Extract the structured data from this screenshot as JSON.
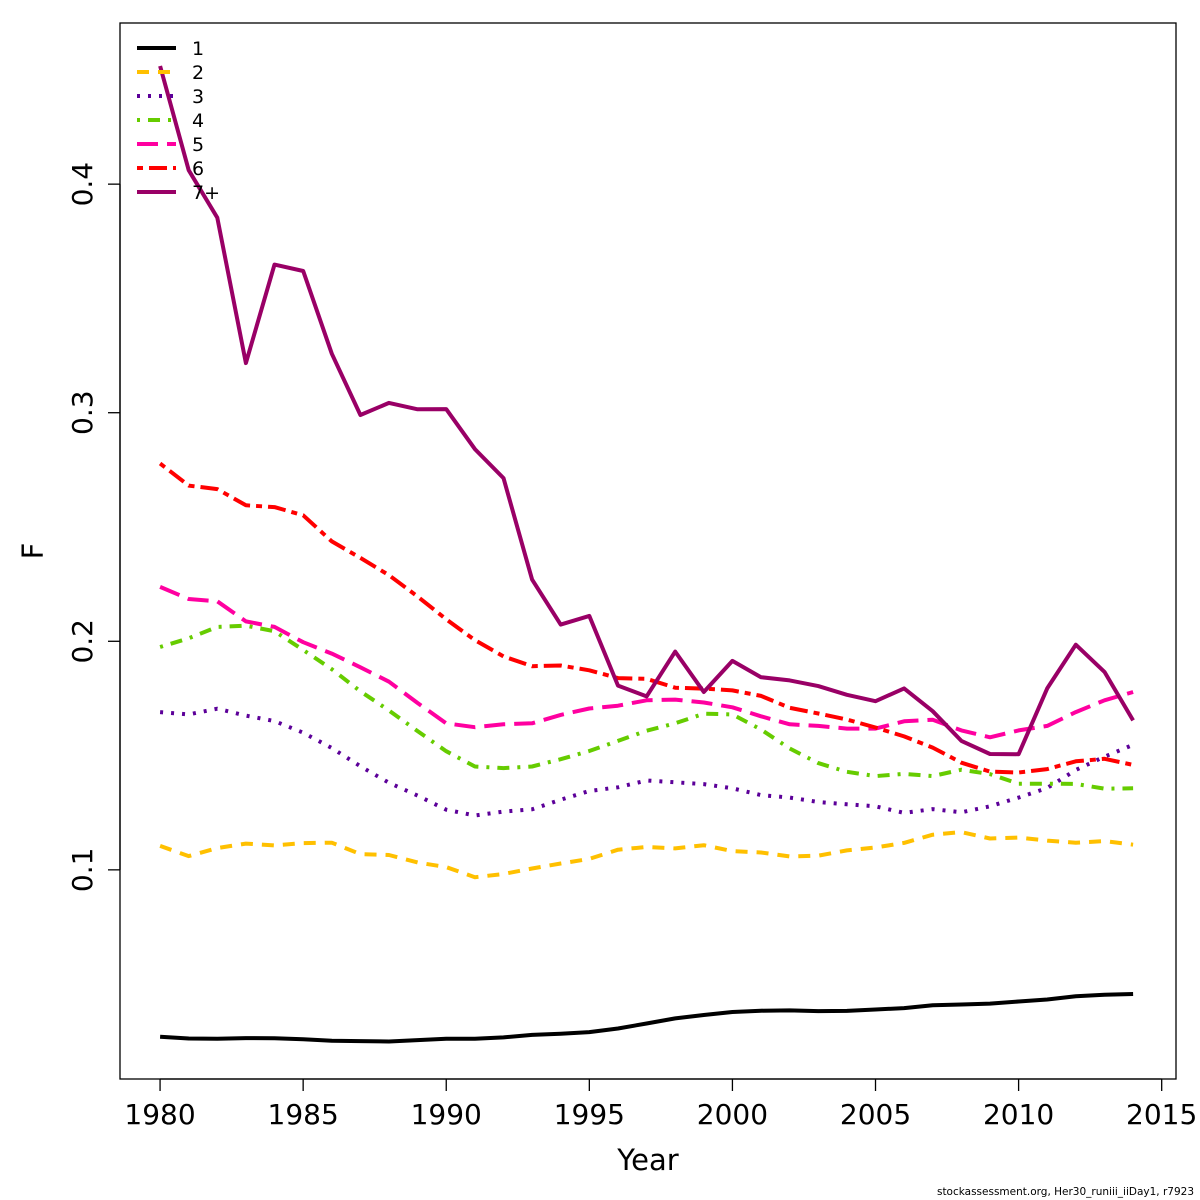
{
  "chart_data": {
    "type": "line",
    "title": "",
    "xlabel": "Year",
    "ylabel": "F",
    "xlim": [
      1978.6,
      2015.5
    ],
    "ylim": [
      0.0085,
      0.4705
    ],
    "x_ticks": [
      "1980",
      "1985",
      "1990",
      "1995",
      "2000",
      "2005",
      "2010",
      "2015"
    ],
    "x_tick_values": [
      1980,
      1985,
      1990,
      1995,
      2000,
      2005,
      2010,
      2015
    ],
    "y_ticks": [
      "0.1",
      "0.2",
      "0.3",
      "0.4"
    ],
    "y_tick_values": [
      0.1,
      0.2,
      0.3,
      0.4
    ],
    "grid": false,
    "legend_position": "top-left",
    "x": [
      1980,
      1981,
      1982,
      1983,
      1984,
      1985,
      1986,
      1987,
      1988,
      1989,
      1990,
      1991,
      1992,
      1993,
      1994,
      1995,
      1996,
      1997,
      1998,
      1999,
      2000,
      2001,
      2002,
      2003,
      2004,
      2005,
      2006,
      2007,
      2008,
      2009,
      2010,
      2011,
      2012,
      2013,
      2014
    ],
    "series": [
      {
        "name": "1",
        "color": "#000000",
        "dash": "solid",
        "values": [
          0.027,
          0.0262,
          0.0261,
          0.0264,
          0.0263,
          0.0259,
          0.0252,
          0.0251,
          0.0249,
          0.0255,
          0.0261,
          0.0261,
          0.0267,
          0.0278,
          0.0283,
          0.029,
          0.0306,
          0.0328,
          0.035,
          0.0365,
          0.0378,
          0.0384,
          0.0385,
          0.0382,
          0.0383,
          0.0389,
          0.0395,
          0.0408,
          0.0411,
          0.0415,
          0.0424,
          0.0433,
          0.0447,
          0.0454,
          0.0457
        ]
      },
      {
        "name": "2",
        "color": "#FFC000",
        "dash": "dashed",
        "values": [
          0.1105,
          0.106,
          0.1095,
          0.1115,
          0.1107,
          0.1117,
          0.1119,
          0.1069,
          0.1065,
          0.1032,
          0.1012,
          0.0968,
          0.0982,
          0.1006,
          0.1028,
          0.1048,
          0.1088,
          0.11,
          0.1094,
          0.1108,
          0.1082,
          0.1076,
          0.1059,
          0.1062,
          0.1085,
          0.1098,
          0.1118,
          0.1154,
          0.1165,
          0.1137,
          0.1141,
          0.1128,
          0.1119,
          0.1126,
          0.111
        ]
      },
      {
        "name": "3",
        "color": "#5C0099",
        "dash": "dotted",
        "values": [
          0.169,
          0.168,
          0.1705,
          0.1675,
          0.1651,
          0.16,
          0.1533,
          0.1453,
          0.1381,
          0.1325,
          0.1263,
          0.1238,
          0.1255,
          0.1265,
          0.1307,
          0.1345,
          0.1361,
          0.1391,
          0.1383,
          0.1375,
          0.1357,
          0.1327,
          0.1316,
          0.1297,
          0.1287,
          0.1278,
          0.1249,
          0.1266,
          0.1252,
          0.1278,
          0.1316,
          0.1358,
          0.1437,
          0.1495,
          0.1547
        ]
      },
      {
        "name": "4",
        "color": "#66CC00",
        "dash": "dotdash",
        "values": [
          0.1975,
          0.2013,
          0.2063,
          0.2068,
          0.2044,
          0.1962,
          0.1878,
          0.1781,
          0.1697,
          0.1607,
          0.1519,
          0.1452,
          0.1445,
          0.1452,
          0.1484,
          0.152,
          0.1564,
          0.1609,
          0.1641,
          0.1683,
          0.168,
          0.1614,
          0.1531,
          0.1467,
          0.1429,
          0.141,
          0.142,
          0.141,
          0.1438,
          0.1419,
          0.1377,
          0.1377,
          0.1376,
          0.1355,
          0.1357
        ]
      },
      {
        "name": "5",
        "color": "#FF00A0",
        "dash": "longdash",
        "values": [
          0.2238,
          0.2185,
          0.2175,
          0.2087,
          0.2063,
          0.1996,
          0.1946,
          0.1886,
          0.1823,
          0.173,
          0.1641,
          0.1624,
          0.1637,
          0.1641,
          0.1678,
          0.1706,
          0.1718,
          0.1742,
          0.1745,
          0.1732,
          0.1711,
          0.1672,
          0.1637,
          0.163,
          0.1618,
          0.1618,
          0.165,
          0.1657,
          0.161,
          0.158,
          0.161,
          0.163,
          0.169,
          0.1742,
          0.1778
        ]
      },
      {
        "name": "6",
        "color": "#FF0000",
        "dash": "twodash",
        "values": [
          0.2778,
          0.2681,
          0.2666,
          0.2595,
          0.2587,
          0.2551,
          0.2437,
          0.2365,
          0.2289,
          0.2196,
          0.2096,
          0.2005,
          0.1934,
          0.1891,
          0.1894,
          0.1873,
          0.1839,
          0.1836,
          0.1797,
          0.1793,
          0.1785,
          0.1761,
          0.1709,
          0.1684,
          0.1658,
          0.1623,
          0.1584,
          0.1535,
          0.1469,
          0.143,
          0.1426,
          0.1441,
          0.1475,
          0.1486,
          0.1459
        ]
      },
      {
        "name": "7+",
        "color": "#990066",
        "dash": "solid",
        "values": [
          0.4517,
          0.4061,
          0.3853,
          0.3217,
          0.3648,
          0.362,
          0.3258,
          0.299,
          0.3043,
          0.3015,
          0.3016,
          0.2841,
          0.2714,
          0.227,
          0.2073,
          0.2111,
          0.1806,
          0.1759,
          0.1955,
          0.1778,
          0.1914,
          0.1843,
          0.1829,
          0.1804,
          0.1766,
          0.1738,
          0.1794,
          0.1694,
          0.1564,
          0.1507,
          0.1506,
          0.1794,
          0.1985,
          0.1866,
          0.1654
        ]
      }
    ]
  },
  "footnote": "stockassessment.org, Her30_runiii_iiDay1, r7923"
}
